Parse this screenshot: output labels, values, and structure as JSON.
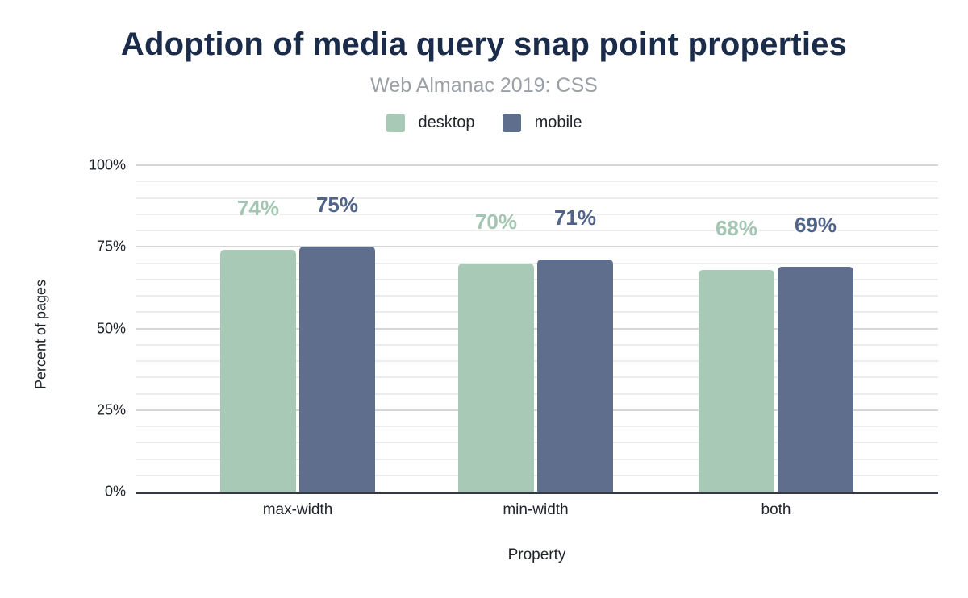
{
  "header": {
    "title": "Adoption of media query snap point properties",
    "subtitle": "Web Almanac 2019: CSS"
  },
  "legend": {
    "items": [
      {
        "label": "desktop",
        "color": "#a8c9b6"
      },
      {
        "label": "mobile",
        "color": "#5f6e8c"
      }
    ]
  },
  "chart_data": {
    "type": "bar",
    "title": "Adoption of media query snap point properties",
    "subtitle": "Web Almanac 2019: CSS",
    "categories": [
      "max-width",
      "min-width",
      "both"
    ],
    "series": [
      {
        "name": "desktop",
        "color": "#a8c9b6",
        "label_color": "#a3c6b2",
        "values": [
          74,
          70,
          68
        ],
        "labels": [
          "74%",
          "70%",
          "68%"
        ]
      },
      {
        "name": "mobile",
        "color": "#5f6e8c",
        "label_color": "#50648a",
        "values": [
          75,
          71,
          69
        ],
        "labels": [
          "75%",
          "71%",
          "69%"
        ]
      }
    ],
    "xlabel": "Property",
    "ylabel": "Percent of pages",
    "ylim": [
      0,
      100
    ],
    "yticks": [
      {
        "value": 0,
        "label": "0%"
      },
      {
        "value": 25,
        "label": "25%"
      },
      {
        "value": 50,
        "label": "50%"
      },
      {
        "value": 75,
        "label": "75%"
      },
      {
        "value": 100,
        "label": "100%"
      }
    ],
    "minor_grid_step": 5,
    "grid": true,
    "legend_position": "top",
    "baseline_color": "#333a42"
  }
}
